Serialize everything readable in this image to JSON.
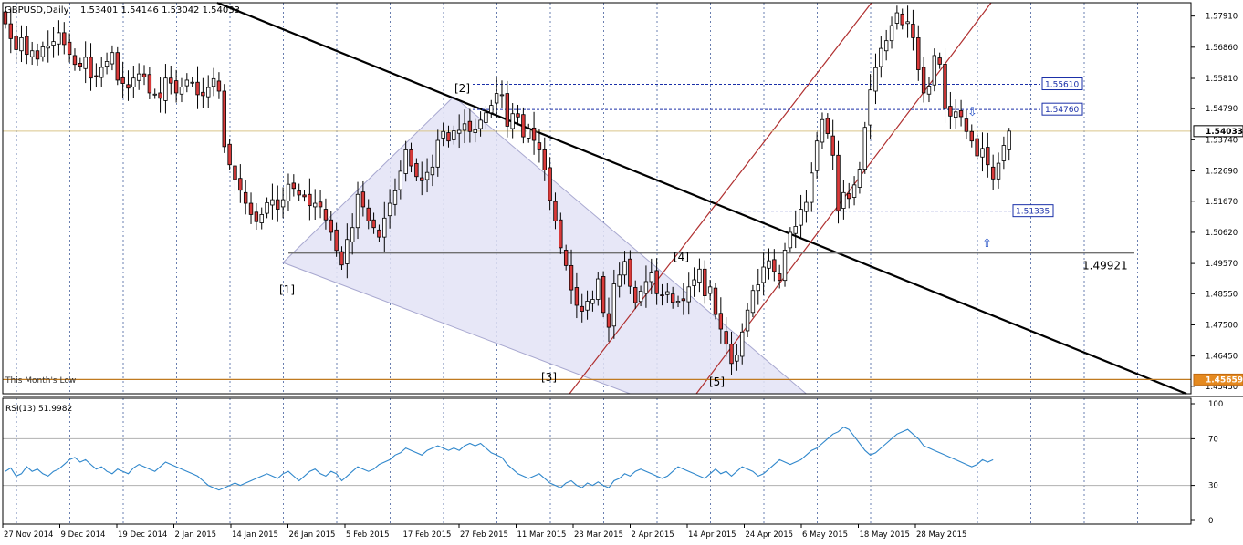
{
  "header": {
    "symbol": "GBPUSD,Daily",
    "ohlc": "1.53401 1.54146 1.53042 1.54033"
  },
  "colors": {
    "bull": "#ffffff",
    "bear": "#d93a3a",
    "wick": "#000000",
    "grid": "#6a7fb0",
    "rsi_line": "#2f87cc",
    "channel": "#b03030",
    "wedge_fill": "#e3e3f6",
    "price_tag_bg": "#fff9d8",
    "low_line": "#c07a20"
  },
  "chart_data": [
    {
      "type": "candlestick",
      "symbol": "GBPUSD",
      "timeframe": "Daily",
      "ohlc_header": {
        "open": 1.53401,
        "high": 1.54146,
        "low": 1.53042,
        "close": 1.54033
      },
      "x_tick_labels": [
        "27 Nov 2014",
        "9 Dec 2014",
        "19 Dec 2014",
        "2 Jan 2015",
        "14 Jan 2015",
        "26 Jan 2015",
        "5 Feb 2015",
        "17 Feb 2015",
        "27 Feb 2015",
        "11 Mar 2015",
        "23 Mar 2015",
        "2 Apr 2015",
        "14 Apr 2015",
        "24 Apr 2015",
        "6 May 2015",
        "18 May 2015",
        "28 May 2015"
      ],
      "y_ticks": [
        1.5791,
        1.5686,
        1.5581,
        1.5479,
        1.5374,
        1.5269,
        1.5167,
        1.5062,
        1.4957,
        1.4855,
        1.475,
        1.4645,
        1.4543
      ],
      "ylim": [
        1.4518,
        1.5836
      ],
      "closes": [
        1.5765,
        1.5715,
        1.5678,
        1.5718,
        1.5662,
        1.5674,
        1.5646,
        1.5687,
        1.5689,
        1.5705,
        1.5735,
        1.5695,
        1.5662,
        1.5628,
        1.5622,
        1.5652,
        1.5582,
        1.5588,
        1.5618,
        1.5638,
        1.5668,
        1.5575,
        1.5564,
        1.5548,
        1.5582,
        1.5596,
        1.5586,
        1.5532,
        1.5528,
        1.5514,
        1.5582,
        1.5565,
        1.5532,
        1.5552,
        1.5575,
        1.5568,
        1.5526,
        1.5523,
        1.555,
        1.558,
        1.5538,
        1.5351,
        1.529,
        1.524,
        1.5204,
        1.516,
        1.5122,
        1.5098,
        1.5122,
        1.5162,
        1.5172,
        1.514,
        1.5172,
        1.5224,
        1.521,
        1.5188,
        1.5182,
        1.5152,
        1.516,
        1.5148,
        1.5104,
        1.5062,
        1.5001,
        1.4952,
        1.5038,
        1.5078,
        1.519,
        1.5148,
        1.51,
        1.5078,
        1.5046,
        1.511,
        1.516,
        1.5202,
        1.5268,
        1.534,
        1.5286,
        1.525,
        1.5236,
        1.5264,
        1.5282,
        1.5372,
        1.5402,
        1.537,
        1.5404,
        1.5406,
        1.5428,
        1.5402,
        1.5408,
        1.544,
        1.5465,
        1.549,
        1.553,
        1.5526,
        1.542,
        1.5462,
        1.5451,
        1.5384,
        1.541,
        1.5372,
        1.534,
        1.5272,
        1.517,
        1.51,
        1.501,
        1.495,
        1.4868,
        1.4816,
        1.4796,
        1.483,
        1.4836,
        1.4905,
        1.4792,
        1.4742,
        1.4888,
        1.4918,
        1.4964,
        1.488,
        1.4825,
        1.4864,
        1.4896,
        1.4925,
        1.4855,
        1.4848,
        1.4862,
        1.4826,
        1.483,
        1.4832,
        1.4878,
        1.4902,
        1.4938,
        1.4848,
        1.4878,
        1.4785,
        1.4736,
        1.4685,
        1.462,
        1.4648,
        1.4726,
        1.48,
        1.4866,
        1.4885,
        1.4945,
        1.4966,
        1.493,
        1.49,
        1.5002,
        1.5062,
        1.5082,
        1.514,
        1.5163,
        1.5262,
        1.537,
        1.5442,
        1.5395,
        1.5322,
        1.5135,
        1.5196,
        1.5176,
        1.5222,
        1.5275,
        1.5416,
        1.5542,
        1.5617,
        1.5682,
        1.5708,
        1.5759,
        1.5802,
        1.5762,
        1.5772,
        1.5718,
        1.561,
        1.5532,
        1.5555,
        1.5658,
        1.5629,
        1.5479,
        1.5454,
        1.5468,
        1.5452,
        1.5402,
        1.537,
        1.532,
        1.5345,
        1.529,
        1.5242,
        1.5295,
        1.5355,
        1.5403
      ],
      "labels_on_chart": [
        "[1]",
        "[2]",
        "[3]",
        "[4]",
        "[5]",
        "This Month's Low"
      ],
      "levels": [
        {
          "label": "1.55610",
          "value": 1.5561
        },
        {
          "label": "1.54760",
          "value": 1.5476
        },
        {
          "label": "1.51335",
          "value": 1.51335
        },
        {
          "label": "1.49921",
          "value": 1.49921
        },
        {
          "label": "1.45659",
          "value": 1.45659
        }
      ],
      "current_price": "1.54033",
      "grid": true
    },
    {
      "type": "line",
      "indicator": "RSI(13) 51.9982",
      "ylim": [
        0,
        100
      ],
      "y_ticks": [
        100,
        70,
        30,
        0
      ],
      "levels": [
        70,
        30
      ],
      "values": [
        42,
        45,
        38,
        40,
        46,
        42,
        44,
        40,
        38,
        42,
        44,
        48,
        52,
        54,
        50,
        52,
        48,
        44,
        46,
        42,
        40,
        44,
        42,
        40,
        45,
        48,
        46,
        44,
        42,
        46,
        50,
        48,
        46,
        44,
        42,
        40,
        38,
        34,
        30,
        28,
        26,
        28,
        30,
        32,
        30,
        32,
        34,
        36,
        38,
        40,
        38,
        36,
        40,
        42,
        38,
        34,
        38,
        42,
        44,
        40,
        38,
        42,
        40,
        34,
        38,
        42,
        46,
        44,
        42,
        44,
        48,
        50,
        52,
        56,
        58,
        62,
        60,
        58,
        56,
        60,
        62,
        64,
        62,
        60,
        62,
        60,
        64,
        66,
        64,
        66,
        62,
        58,
        56,
        54,
        48,
        44,
        40,
        38,
        36,
        38,
        40,
        36,
        32,
        30,
        28,
        32,
        34,
        30,
        28,
        32,
        30,
        33,
        30,
        28,
        34,
        36,
        40,
        38,
        42,
        44,
        42,
        40,
        38,
        36,
        38,
        42,
        46,
        44,
        42,
        40,
        38,
        36,
        40,
        44,
        40,
        42,
        38,
        42,
        46,
        44,
        42,
        38,
        40,
        44,
        48,
        52,
        50,
        48,
        50,
        52,
        56,
        60,
        62,
        66,
        70,
        74,
        76,
        80,
        78,
        72,
        66,
        60,
        56,
        58,
        62,
        66,
        70,
        74,
        76,
        78,
        74,
        70,
        64,
        62,
        60,
        58,
        56,
        54,
        52,
        50,
        48,
        46,
        48,
        52,
        50,
        52
      ]
    }
  ]
}
